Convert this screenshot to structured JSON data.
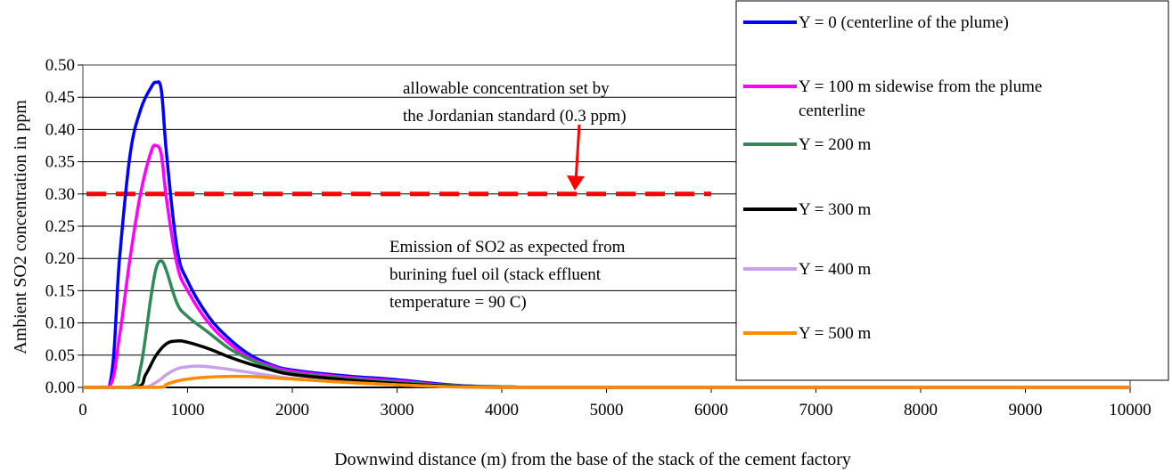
{
  "chart_data": {
    "type": "line",
    "xlabel": "Downwind distance (m) from the base of the stack of the cement factory",
    "ylabel": "Ambient SO2 concentration in ppm",
    "xlim": [
      0,
      10000
    ],
    "ylim": [
      0,
      0.5
    ],
    "x_ticks": [
      "0",
      "1000",
      "2000",
      "3000",
      "4000",
      "5000",
      "6000",
      "7000",
      "8000",
      "9000",
      "10000"
    ],
    "y_ticks": [
      "0.00",
      "0.05",
      "0.10",
      "0.15",
      "0.20",
      "0.25",
      "0.30",
      "0.35",
      "0.40",
      "0.45",
      "0.50"
    ],
    "grid": "horizontal",
    "legend_position": "right",
    "series": [
      {
        "name": "Y = 0 (centerline of the plume)",
        "color": "#0000ff",
        "x": [
          0,
          250,
          350,
          450,
          550,
          650,
          700,
          750,
          800,
          900,
          1000,
          1200,
          1400,
          1600,
          1800,
          2000,
          2500,
          3000,
          3500,
          4000,
          5000,
          10000
        ],
        "y": [
          0,
          0,
          0.2,
          0.36,
          0.43,
          0.465,
          0.473,
          0.46,
          0.36,
          0.215,
          0.165,
          0.11,
          0.075,
          0.05,
          0.035,
          0.027,
          0.018,
          0.012,
          0.004,
          0.001,
          0,
          0
        ]
      },
      {
        "name": "Y = 100 m sidewise from the plume centerline",
        "color": "#ff00ff",
        "x": [
          0,
          250,
          350,
          450,
          550,
          650,
          700,
          750,
          800,
          900,
          1000,
          1200,
          1400,
          1600,
          1800,
          2000,
          2500,
          3000,
          3500,
          4000,
          5000,
          10000
        ],
        "y": [
          0,
          0,
          0.08,
          0.2,
          0.3,
          0.365,
          0.375,
          0.36,
          0.29,
          0.19,
          0.15,
          0.1,
          0.068,
          0.045,
          0.033,
          0.025,
          0.016,
          0.01,
          0.003,
          0.001,
          0,
          0
        ]
      },
      {
        "name": "Y = 200 m",
        "color": "#2e8b57",
        "x": [
          0,
          450,
          550,
          650,
          700,
          750,
          800,
          900,
          1000,
          1200,
          1400,
          1600,
          1800,
          2000,
          2500,
          3000,
          3500,
          4000,
          5000,
          10000
        ],
        "y": [
          0,
          0,
          0.03,
          0.14,
          0.185,
          0.196,
          0.18,
          0.13,
          0.11,
          0.085,
          0.06,
          0.043,
          0.03,
          0.022,
          0.014,
          0.008,
          0.003,
          0.001,
          0,
          0
        ]
      },
      {
        "name": "Y = 300 m",
        "color": "#000000",
        "x": [
          0,
          500,
          600,
          700,
          800,
          900,
          1000,
          1200,
          1400,
          1600,
          1800,
          2000,
          2500,
          3000,
          3500,
          4000,
          5000,
          10000
        ],
        "y": [
          0,
          0,
          0.02,
          0.05,
          0.068,
          0.072,
          0.07,
          0.06,
          0.047,
          0.036,
          0.027,
          0.02,
          0.012,
          0.006,
          0.002,
          0,
          0,
          0
        ]
      },
      {
        "name": "Y = 400 m",
        "color": "#c8a2e8",
        "x": [
          0,
          550,
          700,
          800,
          900,
          1000,
          1100,
          1200,
          1400,
          1600,
          1800,
          2000,
          2500,
          3000,
          3500,
          4000,
          5000,
          10000
        ],
        "y": [
          0,
          0,
          0.008,
          0.02,
          0.029,
          0.032,
          0.033,
          0.032,
          0.028,
          0.023,
          0.018,
          0.014,
          0.008,
          0.004,
          0.001,
          0,
          0,
          0
        ]
      },
      {
        "name": "Y = 500 m",
        "color": "#ff8c00",
        "x": [
          0,
          700,
          800,
          900,
          1000,
          1200,
          1400,
          1600,
          1800,
          2000,
          2500,
          3000,
          3500,
          4000,
          5000,
          10000
        ],
        "y": [
          0,
          0,
          0.005,
          0.01,
          0.013,
          0.016,
          0.017,
          0.017,
          0.015,
          0.013,
          0.008,
          0.004,
          0.001,
          0,
          0,
          0
        ]
      }
    ],
    "reference_line": {
      "y": 0.3,
      "x_range": [
        0,
        6000
      ],
      "color": "#ff0000",
      "style": "dashed"
    },
    "annotations": [
      {
        "lines": [
          "allowable concentration set by",
          "the Jordanian standard (0.3 ppm)"
        ]
      },
      {
        "lines": [
          "Emission of SO2 as expected from",
          "burining fuel oil (stack effluent",
          "temperature = 90 C)"
        ]
      }
    ],
    "legend": [
      {
        "lines": [
          "Y = 0 (centerline of the plume)"
        ]
      },
      {
        "lines": [
          "Y = 100 m sidewise from the plume",
          "centerline"
        ]
      },
      {
        "lines": [
          "Y = 200 m"
        ]
      },
      {
        "lines": [
          "Y = 300 m"
        ]
      },
      {
        "lines": [
          "Y = 400 m"
        ]
      },
      {
        "lines": [
          "Y = 500 m"
        ]
      }
    ]
  }
}
